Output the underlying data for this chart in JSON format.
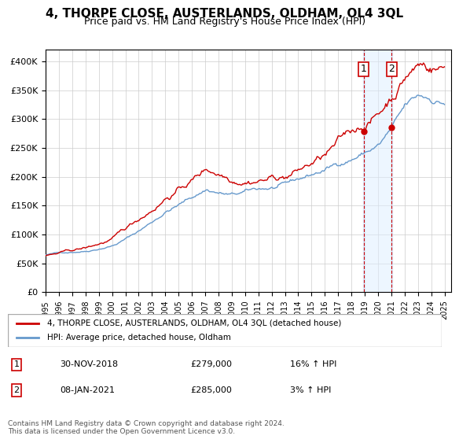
{
  "title": "4, THORPE CLOSE, AUSTERLANDS, OLDHAM, OL4 3QL",
  "subtitle": "Price paid vs. HM Land Registry's House Price Index (HPI)",
  "ylabel_ticks": [
    "£0",
    "£50K",
    "£100K",
    "£150K",
    "£200K",
    "£250K",
    "£300K",
    "£350K",
    "£400K"
  ],
  "ytick_vals": [
    0,
    50000,
    100000,
    150000,
    200000,
    250000,
    300000,
    350000,
    400000
  ],
  "ylim": [
    0,
    420000
  ],
  "xlim_start": 1995.0,
  "xlim_end": 2025.5,
  "sale1_date": 2018.92,
  "sale1_price": 279000,
  "sale1_label": "1",
  "sale2_date": 2021.03,
  "sale2_price": 285000,
  "sale2_label": "2",
  "legend_line1": "4, THORPE CLOSE, AUSTERLANDS, OLDHAM, OL4 3QL (detached house)",
  "legend_line2": "HPI: Average price, detached house, Oldham",
  "annotation1": "1    30-NOV-2018    £279,000    16% ↑ HPI",
  "annotation2": "2    08-JAN-2021    £285,000      3% ↑ HPI",
  "footer": "Contains HM Land Registry data © Crown copyright and database right 2024.\nThis data is licensed under the Open Government Licence v3.0.",
  "red_color": "#cc0000",
  "blue_color": "#6699cc",
  "shade_color": "#ddeeff"
}
